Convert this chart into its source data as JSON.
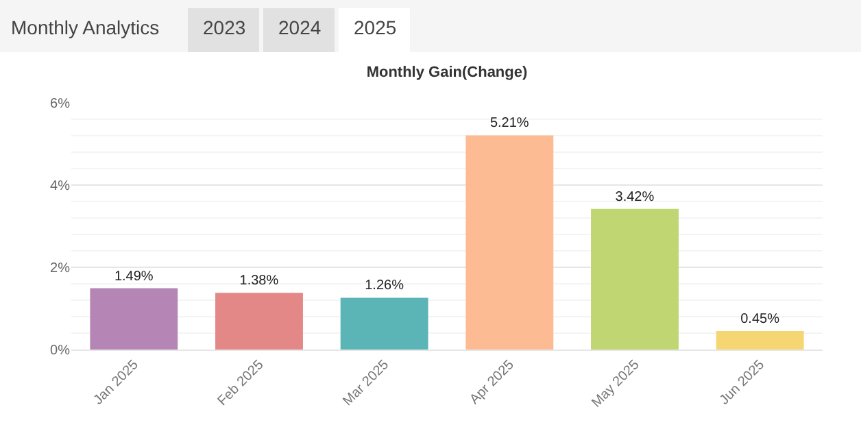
{
  "chart_data": {
    "type": "bar",
    "title": "Monthly Gain(Change)",
    "annotations": [
      "Monthly Analytics",
      "2023",
      "2024",
      "2025"
    ],
    "categories": [
      "Jan 2025",
      "Feb 2025",
      "Mar 2025",
      "Apr 2025",
      "May 2025",
      "Jun 2025"
    ],
    "values": [
      1.49,
      1.38,
      1.26,
      5.21,
      3.42,
      0.45
    ],
    "value_labels": [
      "1.49%",
      "1.38%",
      "1.26%",
      "5.21%",
      "3.42%",
      "0.45%"
    ],
    "colors": [
      "#b586b5",
      "#e38886",
      "#5bb4b5",
      "#fdbb94",
      "#bfd672",
      "#f6d573"
    ],
    "ylim": [
      0,
      6
    ],
    "yticks": [
      {
        "value": 0,
        "label": "0%"
      },
      {
        "value": 2,
        "label": "2%"
      },
      {
        "value": 4,
        "label": "4%"
      },
      {
        "value": 6,
        "label": "6%"
      }
    ],
    "grid": "y"
  }
}
